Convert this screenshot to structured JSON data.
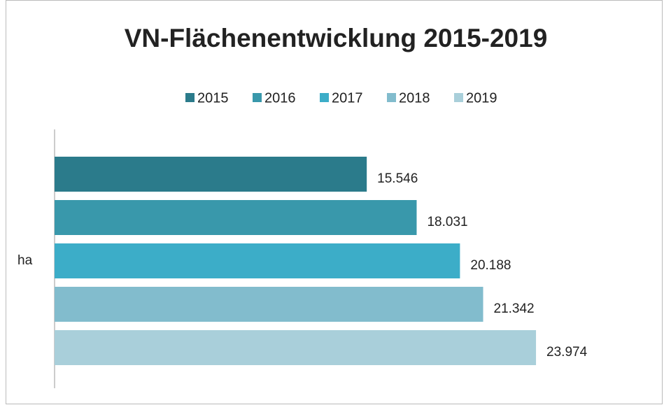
{
  "chart_data": {
    "type": "bar",
    "orientation": "horizontal",
    "title": "VN-Flächenentwicklung 2015-2019",
    "categories": [
      "ha"
    ],
    "series": [
      {
        "name": "2015",
        "color": "#2b7b8b",
        "values": [
          15546
        ],
        "value_labels": [
          "15.546"
        ]
      },
      {
        "name": "2016",
        "color": "#3998ab",
        "values": [
          18031
        ],
        "value_labels": [
          "18.031"
        ]
      },
      {
        "name": "2017",
        "color": "#3cadc8",
        "values": [
          20188
        ],
        "value_labels": [
          "20.188"
        ]
      },
      {
        "name": "2018",
        "color": "#82bccd",
        "values": [
          21342
        ],
        "value_labels": [
          "21.342"
        ]
      },
      {
        "name": "2019",
        "color": "#a9cfda",
        "values": [
          23974
        ],
        "value_labels": [
          "23.974"
        ]
      }
    ],
    "xlim": [
      0,
      30000
    ],
    "legend": "top"
  }
}
